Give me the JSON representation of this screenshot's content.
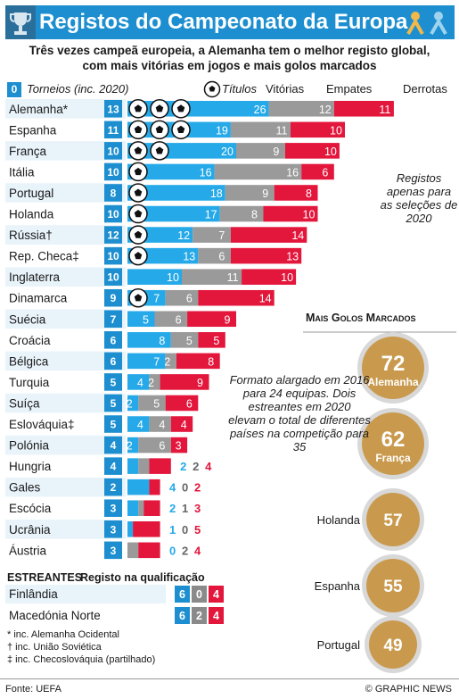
{
  "header": {
    "title": "Registos do Campeonato da Europa",
    "subtitle_line1": "Três vezes campeã europeia, a Alemanha tem o melhor registo global,",
    "subtitle_line2": "com mais vitórias em jogos e mais golos marcados"
  },
  "legend": {
    "box_label": "0",
    "tournaments": "Torneios (inc. 2020)",
    "titles": "Títulos",
    "wins": "Vitórias",
    "draws": "Empates",
    "losses": "Derrotas"
  },
  "colors": {
    "tournaments": "#1d8fd0",
    "wins": "#25a9e8",
    "draws": "#9a9a9a",
    "losses": "#e3163c",
    "row_alt": "#e8f3fa",
    "gold": "#c99a4e",
    "title_bar": "#1d8fd0"
  },
  "chart_data": [
    {
      "type": "bar",
      "title": "Registos do Campeonato da Europa",
      "categories": [
        "Alemanha*",
        "Espanha",
        "França",
        "Itália",
        "Portugal",
        "Holanda",
        "Rússia†",
        "Rep. Checa‡",
        "Inglaterra",
        "Dinamarca",
        "Suécia",
        "Croácia",
        "Bélgica",
        "Turquia",
        "Suíça",
        "Eslováquia‡",
        "Polónia",
        "Hungria",
        "Gales",
        "Escócia",
        "Ucrânia",
        "Áustria"
      ],
      "tournaments": [
        13,
        11,
        10,
        10,
        8,
        10,
        12,
        10,
        10,
        9,
        7,
        6,
        6,
        5,
        5,
        5,
        4,
        4,
        2,
        3,
        3,
        3
      ],
      "titles": [
        3,
        3,
        2,
        1,
        1,
        1,
        1,
        1,
        0,
        1,
        0,
        0,
        0,
        0,
        0,
        0,
        0,
        0,
        0,
        0,
        0,
        0
      ],
      "series": [
        {
          "name": "Vitórias",
          "values": [
            26,
            19,
            20,
            16,
            18,
            17,
            12,
            13,
            10,
            7,
            5,
            8,
            7,
            4,
            2,
            4,
            2,
            2,
            4,
            2,
            1,
            0
          ]
        },
        {
          "name": "Empates",
          "values": [
            12,
            11,
            9,
            16,
            9,
            8,
            7,
            6,
            11,
            6,
            6,
            5,
            2,
            2,
            5,
            4,
            6,
            2,
            0,
            1,
            0,
            2
          ]
        },
        {
          "name": "Derrotas",
          "values": [
            11,
            10,
            10,
            6,
            8,
            10,
            14,
            13,
            10,
            14,
            9,
            5,
            8,
            9,
            6,
            4,
            3,
            4,
            2,
            3,
            5,
            4
          ]
        }
      ],
      "notes": "Registos apenas para as seleções de 2020"
    },
    {
      "type": "bar",
      "title": "Mais Golos Marcados",
      "categories": [
        "Alemanha",
        "França",
        "Holanda",
        "Espanha",
        "Portugal"
      ],
      "values": [
        72,
        62,
        57,
        55,
        49
      ]
    }
  ],
  "notes": {
    "right_note": "Registos apenas para as seleções de 2020",
    "format_note": "Formato alargado em 2016 para 24 equipas. Dois estreantes em 2020 elevam o total de diferentes países na competição para 35"
  },
  "entrants": {
    "header": "ESTREANTES",
    "subheader": "Registo na qualificação",
    "rows": [
      {
        "name": "Finlândia",
        "values": [
          6,
          0,
          4
        ]
      },
      {
        "name": "Macedónia Norte",
        "values": [
          6,
          2,
          4
        ]
      }
    ]
  },
  "footnotes": {
    "f1": "* inc. Alemanha Ocidental",
    "f2": "† inc. União Soviética",
    "f3": "‡ inc. Checoslováquia (partilhado)"
  },
  "footer": {
    "source": "Fonte: UEFA",
    "credit": "© GRAPHIC NEWS"
  }
}
